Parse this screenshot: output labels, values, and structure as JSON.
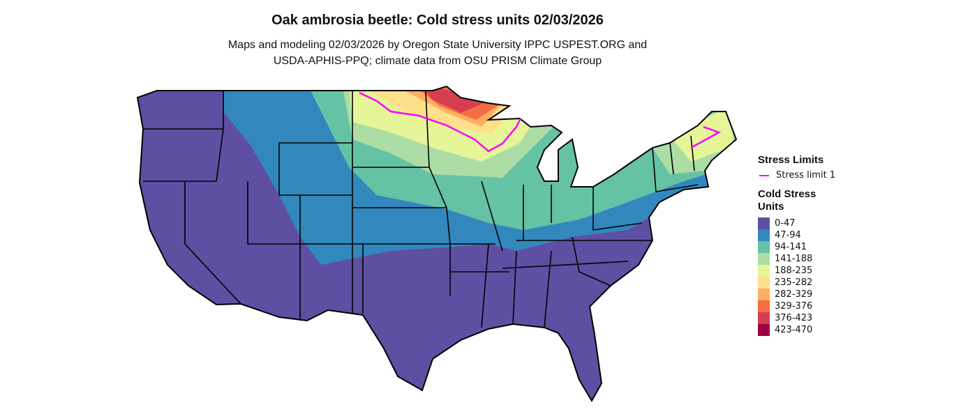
{
  "title": "Oak ambrosia beetle: Cold stress units 02/03/2026",
  "subtitle_line1": "Maps and modeling 02/03/2026 by Oregon State University IPPC USPEST.ORG and",
  "subtitle_line2": "USDA-APHIS-PPQ; climate data from OSU PRISM Climate Group",
  "legend": {
    "stress_limits_title": "Stress Limits",
    "stress_limit_label": "Stress limit 1",
    "stress_limit_color": "#ff00ff",
    "units_title_line1": "Cold Stress",
    "units_title_line2": "Units",
    "classes": [
      {
        "label": "0-47",
        "color": "#5E4FA2"
      },
      {
        "label": "47-94",
        "color": "#3288BD"
      },
      {
        "label": "94-141",
        "color": "#66C2A5"
      },
      {
        "label": "141-188",
        "color": "#ABDDA4"
      },
      {
        "label": "188-235",
        "color": "#E6F598"
      },
      {
        "label": "235-282",
        "color": "#FEE08B"
      },
      {
        "label": "282-329",
        "color": "#FDAE61"
      },
      {
        "label": "329-376",
        "color": "#F46D43"
      },
      {
        "label": "376-423",
        "color": "#D53E4F"
      },
      {
        "label": "423-470",
        "color": "#9E0142"
      }
    ]
  }
}
